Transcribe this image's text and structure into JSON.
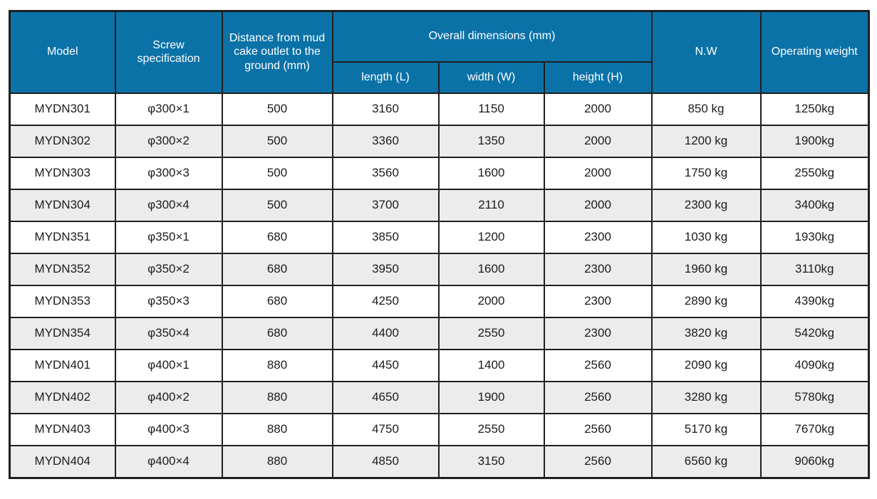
{
  "colors": {
    "header_bg": "#0B72A8",
    "header_text": "#FFFFFF",
    "row_alt_bg": "#ECECEC",
    "border": "#1F1F1F",
    "body_text": "#1C1C1C"
  },
  "chart_data": {
    "type": "table",
    "header": {
      "model": "Model",
      "screw": "Screw specification",
      "distance": "Distance from mud cake outlet to the ground (mm)",
      "overall_dimensions": "Overall dimensions (mm)",
      "length": "length (L)",
      "width": "width (W)",
      "height": "height (H)",
      "nw": "N.W",
      "operating_weight": "Operating weight"
    },
    "column_keys": [
      "model",
      "screw",
      "distance",
      "length",
      "width",
      "height",
      "nw",
      "operating_weight"
    ],
    "rows": [
      {
        "model": "MYDN301",
        "screw": "φ300×1",
        "distance": "500",
        "length": "3160",
        "width": "1150",
        "height": "2000",
        "nw": "850 kg",
        "operating_weight": "1250kg"
      },
      {
        "model": "MYDN302",
        "screw": "φ300×2",
        "distance": "500",
        "length": "3360",
        "width": "1350",
        "height": "2000",
        "nw": "1200 kg",
        "operating_weight": "1900kg"
      },
      {
        "model": "MYDN303",
        "screw": "φ300×3",
        "distance": "500",
        "length": "3560",
        "width": "1600",
        "height": "2000",
        "nw": "1750 kg",
        "operating_weight": "2550kg"
      },
      {
        "model": "MYDN304",
        "screw": "φ300×4",
        "distance": "500",
        "length": "3700",
        "width": "2110",
        "height": "2000",
        "nw": "2300 kg",
        "operating_weight": "3400kg"
      },
      {
        "model": "MYDN351",
        "screw": "φ350×1",
        "distance": "680",
        "length": "3850",
        "width": "1200",
        "height": "2300",
        "nw": "1030 kg",
        "operating_weight": "1930kg"
      },
      {
        "model": "MYDN352",
        "screw": "φ350×2",
        "distance": "680",
        "length": "3950",
        "width": "1600",
        "height": "2300",
        "nw": "1960 kg",
        "operating_weight": "3110kg"
      },
      {
        "model": "MYDN353",
        "screw": "φ350×3",
        "distance": "680",
        "length": "4250",
        "width": "2000",
        "height": "2300",
        "nw": "2890 kg",
        "operating_weight": "4390kg"
      },
      {
        "model": "MYDN354",
        "screw": "φ350×4",
        "distance": "680",
        "length": "4400",
        "width": "2550",
        "height": "2300",
        "nw": "3820 kg",
        "operating_weight": "5420kg"
      },
      {
        "model": "MYDN401",
        "screw": "φ400×1",
        "distance": "880",
        "length": "4450",
        "width": "1400",
        "height": "2560",
        "nw": "2090 kg",
        "operating_weight": "4090kg"
      },
      {
        "model": "MYDN402",
        "screw": "φ400×2",
        "distance": "880",
        "length": "4650",
        "width": "1900",
        "height": "2560",
        "nw": "3280 kg",
        "operating_weight": "5780kg"
      },
      {
        "model": "MYDN403",
        "screw": "φ400×3",
        "distance": "880",
        "length": "4750",
        "width": "2550",
        "height": "2560",
        "nw": "5170 kg",
        "operating_weight": "7670kg"
      },
      {
        "model": "MYDN404",
        "screw": "φ400×4",
        "distance": "880",
        "length": "4850",
        "width": "3150",
        "height": "2560",
        "nw": "6560 kg",
        "operating_weight": "9060kg"
      }
    ]
  }
}
